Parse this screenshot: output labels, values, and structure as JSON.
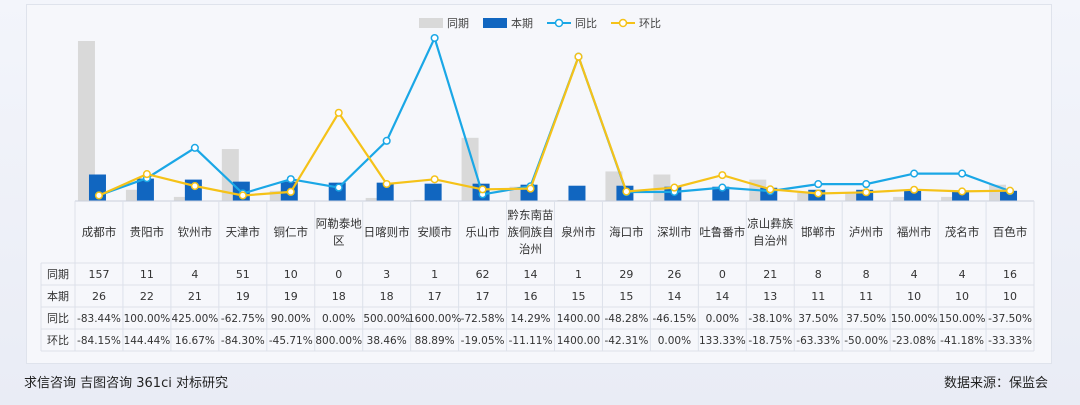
{
  "footer": {
    "left": "求信咨询 吉图咨询 361ci 对标研究",
    "right": "数据来源：保监会"
  },
  "chart_data": {
    "type": "bar",
    "title": "",
    "legend_position": "top-center",
    "colors": {
      "prev": "#d9d9d9",
      "cur": "#1166c0",
      "yoy": "#1aa7e6",
      "mom": "#f5c218"
    },
    "categories": [
      "成都市",
      "贵阳市",
      "钦州市",
      "天津市",
      "铜仁市",
      "阿勒泰地区",
      "日喀则市",
      "安顺市",
      "乐山市",
      "黔东南苗族侗族自治州",
      "泉州市",
      "海口市",
      "深圳市",
      "吐鲁番市",
      "凉山彝族自治州",
      "邯郸市",
      "泸州市",
      "福州市",
      "茂名市",
      "百色市"
    ],
    "series": [
      {
        "name": "同期",
        "kind": "bar",
        "values": [
          157,
          11,
          4,
          51,
          10,
          0,
          3,
          1,
          62,
          14,
          1,
          29,
          26,
          0,
          21,
          8,
          8,
          4,
          4,
          16
        ]
      },
      {
        "name": "本期",
        "kind": "bar",
        "values": [
          26,
          22,
          21,
          19,
          19,
          18,
          18,
          17,
          17,
          16,
          15,
          15,
          14,
          14,
          13,
          11,
          11,
          10,
          10,
          10
        ]
      },
      {
        "name": "同比",
        "kind": "line",
        "values": [
          -83.44,
          100.0,
          425.0,
          -62.75,
          90.0,
          0.0,
          500.0,
          1600.0,
          -72.58,
          14.29,
          1400.0,
          -48.28,
          -46.15,
          0.0,
          -38.1,
          37.5,
          37.5,
          150.0,
          150.0,
          -37.5
        ]
      },
      {
        "name": "环比",
        "kind": "line",
        "values": [
          -84.15,
          144.44,
          16.67,
          -84.3,
          -45.71,
          800.0,
          38.46,
          88.89,
          -19.05,
          -11.11,
          1400.0,
          -42.31,
          0.0,
          133.33,
          -18.75,
          -63.33,
          -50.0,
          -23.08,
          -41.18,
          -33.33
        ]
      }
    ],
    "table": {
      "row_labels": [
        "同期",
        "本期",
        "同比",
        "环比"
      ],
      "rows": [
        [
          "157",
          "11",
          "4",
          "51",
          "10",
          "0",
          "3",
          "1",
          "62",
          "14",
          "1",
          "29",
          "26",
          "0",
          "21",
          "8",
          "8",
          "4",
          "4",
          "16"
        ],
        [
          "26",
          "22",
          "21",
          "19",
          "19",
          "18",
          "18",
          "17",
          "17",
          "16",
          "15",
          "15",
          "14",
          "14",
          "13",
          "11",
          "11",
          "10",
          "10",
          "10"
        ],
        [
          "-83.44%",
          "100.00%",
          "425.00%",
          "-62.75%",
          "90.00%",
          "0.00%",
          "500.00%",
          "1600.00%",
          "-72.58%",
          "14.29%",
          "1400.00",
          "-48.28%",
          "-46.15%",
          "0.00%",
          "-38.10%",
          "37.50%",
          "37.50%",
          "150.00%",
          "150.00%",
          "-37.50%"
        ],
        [
          "-84.15%",
          "144.44%",
          "16.67%",
          "-84.30%",
          "-45.71%",
          "800.00%",
          "38.46%",
          "88.89%",
          "-19.05%",
          "-11.11%",
          "1400.00",
          "-42.31%",
          "0.00%",
          "133.33%",
          "-18.75%",
          "-63.33%",
          "-50.00%",
          "-23.08%",
          "-41.18%",
          "-33.33%"
        ]
      ]
    }
  }
}
